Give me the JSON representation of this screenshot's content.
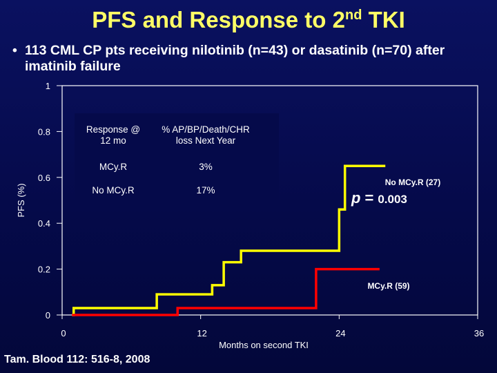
{
  "slide": {
    "title_main": "PFS and Response to 2",
    "title_sup": "nd",
    "title_end": " TKI",
    "bullet": "113 CML CP pts receiving nilotinib (n=43) or dasatinib (n=70) after imatinib failure",
    "citation": "Tam. Blood 112: 516-8, 2008"
  },
  "chart_data": {
    "type": "line",
    "xlabel": "Months on second TKI",
    "ylabel": "PFS (%)",
    "xlim": [
      0,
      36
    ],
    "ylim": [
      0,
      1
    ],
    "x_ticks": [
      "0",
      "12",
      "24",
      "36"
    ],
    "y_ticks": [
      "0",
      "0.2",
      "0.4",
      "0.6",
      "0.8",
      "1"
    ],
    "grid": false,
    "series": [
      {
        "name": "No MCyR (27)",
        "color": "#ffff00",
        "step_x": [
          0.85,
          1.0,
          2.9,
          8.2,
          13.0,
          14.0,
          15.5,
          24.0,
          24.5,
          28.0
        ],
        "step_y": [
          0,
          0.03,
          0.03,
          0.09,
          0.13,
          0.23,
          0.28,
          0.46,
          0.65,
          0.65
        ]
      },
      {
        "name": "MCyR (59)",
        "color": "#ff0000",
        "step_x": [
          0.85,
          10.0,
          22.0,
          27.5
        ],
        "step_y": [
          0,
          0.03,
          0.2,
          0.2
        ]
      }
    ],
    "annotations": {
      "no_mcyr_label": "No MCy.R (27)",
      "mcyr_label": "MCy.R (59)",
      "p_symbol": "p",
      "p_eq": "=",
      "p_value": "0.003"
    },
    "inset_table": {
      "headers": [
        "Response @ 12 mo",
        "% AP/BP/Death/CHR loss Next Year"
      ],
      "rows": [
        [
          "MCy.R",
          "3%"
        ],
        [
          "No MCy.R",
          "17%"
        ]
      ]
    }
  }
}
